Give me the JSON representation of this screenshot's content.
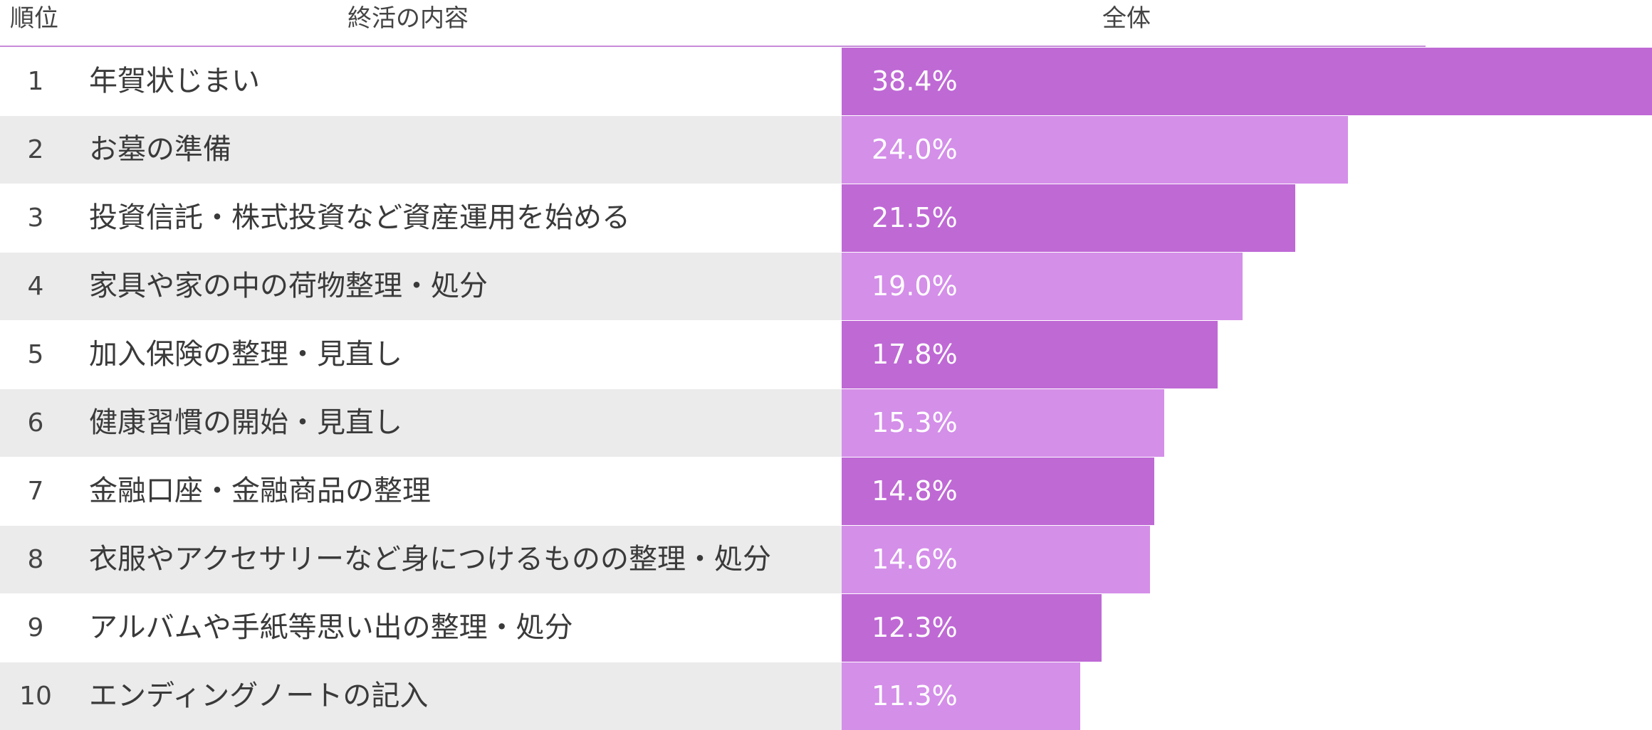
{
  "header": {
    "rank": "順位",
    "item": "終活の内容",
    "total": "全体"
  },
  "colors": {
    "odd_bar": "#bf69d5",
    "even_bar": "#d48fe9",
    "header_rule": "#c78ad8",
    "stripe": "#ebebeb"
  },
  "chart_data": {
    "type": "bar",
    "orientation": "horizontal",
    "value_unit": "%",
    "xlim": [
      0,
      38.4
    ],
    "categories": [
      "年賀状じまい",
      "お墓の準備",
      "投資信託・株式投資など資産運用を始める",
      "家具や家の中の荷物整理・処分",
      "加入保険の整理・見直し",
      "健康習慣の開始・見直し",
      "金融口座・金融商品の整理",
      "衣服やアクセサリーなど身につけるものの整理・処分",
      "アルバムや手紙等思い出の整理・処分",
      "エンディングノートの記入"
    ],
    "ranks": [
      "1",
      "2",
      "3",
      "4",
      "5",
      "6",
      "7",
      "8",
      "9",
      "10"
    ],
    "values": [
      38.4,
      24.0,
      21.5,
      19.0,
      17.8,
      15.3,
      14.8,
      14.6,
      12.3,
      11.3
    ],
    "value_labels": [
      "38.4%",
      "24.0%",
      "21.5%",
      "19.0%",
      "17.8%",
      "15.3%",
      "14.8%",
      "14.6%",
      "12.3%",
      "11.3%"
    ]
  }
}
